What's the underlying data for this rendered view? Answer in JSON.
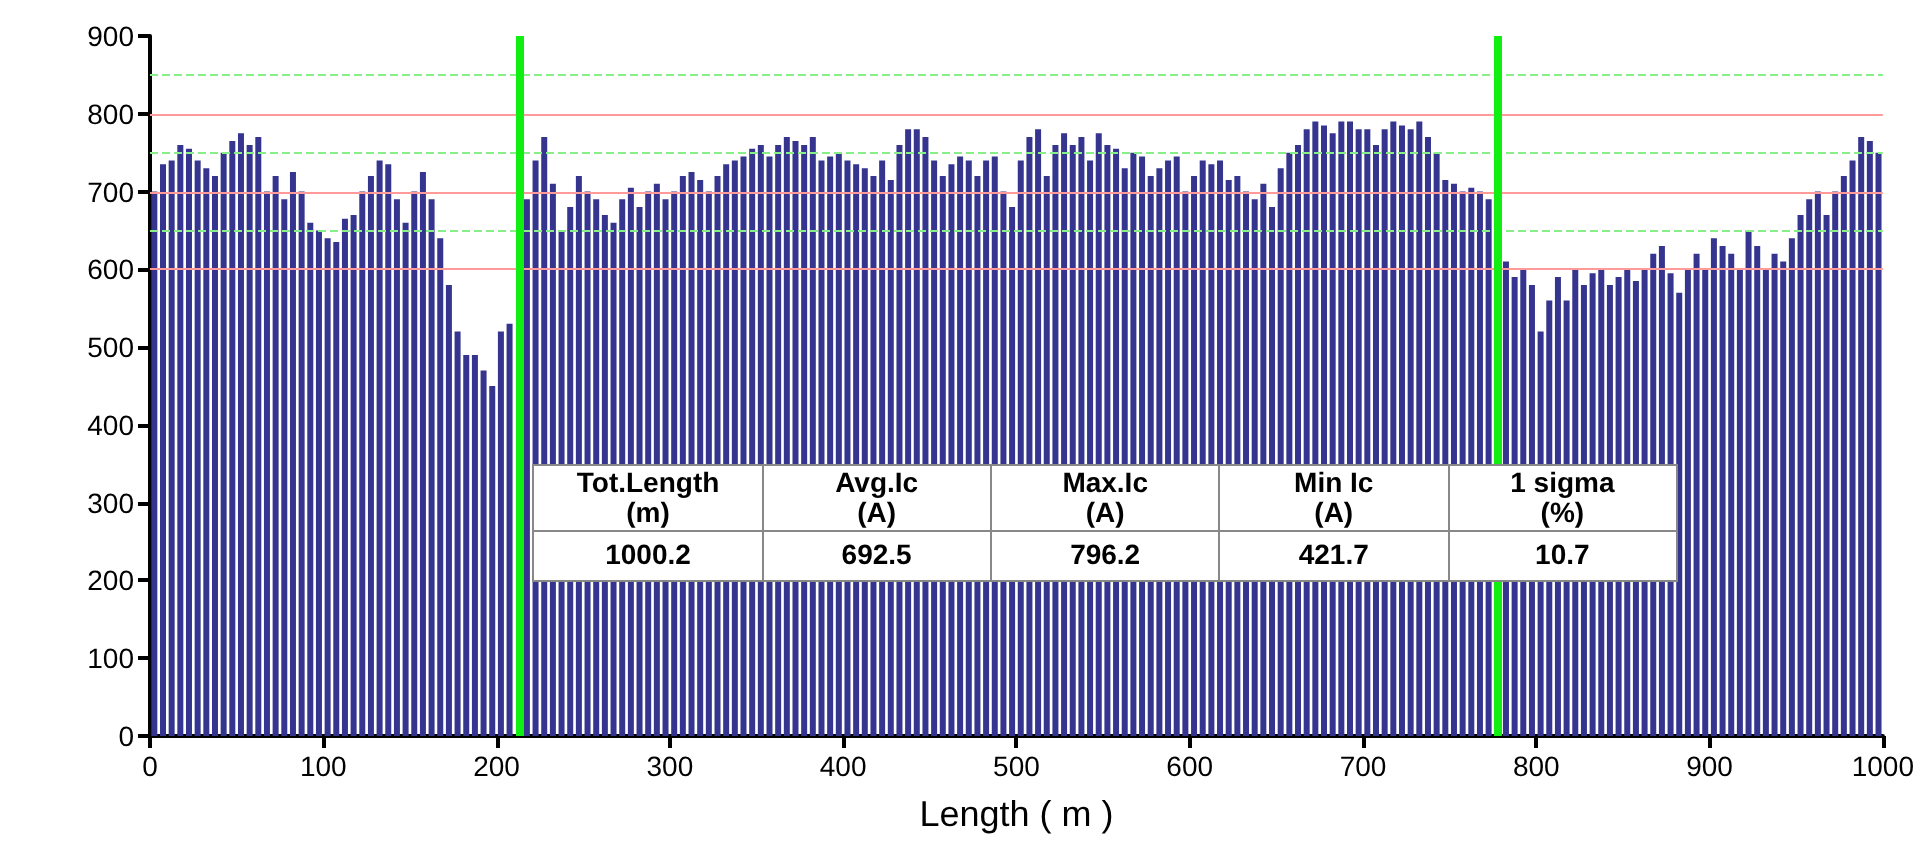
{
  "chart_data": {
    "type": "bar",
    "xlabel": "Length ( m )",
    "x": [
      2.5,
      7.5,
      12.5,
      17.5,
      22.5,
      27.5,
      32.5,
      37.5,
      42.5,
      47.5,
      52.5,
      57.5,
      62.5,
      67.5,
      72.5,
      77.5,
      82.5,
      87.5,
      92.5,
      97.5,
      102.5,
      107.5,
      112.5,
      117.5,
      122.5,
      127.5,
      132.5,
      137.5,
      142.5,
      147.5,
      152.5,
      157.5,
      162.5,
      167.5,
      172.5,
      177.5,
      182.5,
      187.5,
      192.5,
      197.5,
      202.5,
      207.5,
      212.5,
      217.5,
      222.5,
      227.5,
      232.5,
      237.5,
      242.5,
      247.5,
      252.5,
      257.5,
      262.5,
      267.5,
      272.5,
      277.5,
      282.5,
      287.5,
      292.5,
      297.5,
      302.5,
      307.5,
      312.5,
      317.5,
      322.5,
      327.5,
      332.5,
      337.5,
      342.5,
      347.5,
      352.5,
      357.5,
      362.5,
      367.5,
      372.5,
      377.5,
      382.5,
      387.5,
      392.5,
      397.5,
      402.5,
      407.5,
      412.5,
      417.5,
      422.5,
      427.5,
      432.5,
      437.5,
      442.5,
      447.5,
      452.5,
      457.5,
      462.5,
      467.5,
      472.5,
      477.5,
      482.5,
      487.5,
      492.5,
      497.5,
      502.5,
      507.5,
      512.5,
      517.5,
      522.5,
      527.5,
      532.5,
      537.5,
      542.5,
      547.5,
      552.5,
      557.5,
      562.5,
      567.5,
      572.5,
      577.5,
      582.5,
      587.5,
      592.5,
      597.5,
      602.5,
      607.5,
      612.5,
      617.5,
      622.5,
      627.5,
      632.5,
      637.5,
      642.5,
      647.5,
      652.5,
      657.5,
      662.5,
      667.5,
      672.5,
      677.5,
      682.5,
      687.5,
      692.5,
      697.5,
      702.5,
      707.5,
      712.5,
      717.5,
      722.5,
      727.5,
      732.5,
      737.5,
      742.5,
      747.5,
      752.5,
      757.5,
      762.5,
      767.5,
      772.5,
      777.5,
      782.5,
      787.5,
      792.5,
      797.5,
      802.5,
      807.5,
      812.5,
      817.5,
      822.5,
      827.5,
      832.5,
      837.5,
      842.5,
      847.5,
      852.5,
      857.5,
      862.5,
      867.5,
      872.5,
      877.5,
      882.5,
      887.5,
      892.5,
      897.5,
      902.5,
      907.5,
      912.5,
      917.5,
      922.5,
      927.5,
      932.5,
      937.5,
      942.5,
      947.5,
      952.5,
      957.5,
      962.5,
      967.5,
      972.5,
      977.5,
      982.5,
      987.5,
      992.5,
      997.5
    ],
    "values": [
      700,
      735,
      740,
      760,
      755,
      740,
      730,
      720,
      750,
      765,
      775,
      760,
      770,
      700,
      720,
      690,
      725,
      700,
      660,
      650,
      640,
      635,
      665,
      670,
      700,
      720,
      740,
      735,
      690,
      660,
      700,
      725,
      690,
      640,
      580,
      520,
      490,
      490,
      470,
      450,
      520,
      530,
      null,
      690,
      740,
      770,
      710,
      650,
      680,
      720,
      700,
      690,
      670,
      660,
      690,
      705,
      680,
      700,
      710,
      690,
      700,
      720,
      725,
      715,
      700,
      720,
      735,
      740,
      745,
      755,
      760,
      745,
      760,
      770,
      765,
      760,
      770,
      740,
      745,
      750,
      740,
      735,
      730,
      720,
      740,
      715,
      760,
      780,
      780,
      770,
      740,
      720,
      735,
      745,
      740,
      720,
      740,
      745,
      700,
      680,
      740,
      770,
      780,
      720,
      760,
      775,
      760,
      770,
      740,
      775,
      760,
      755,
      730,
      750,
      745,
      720,
      730,
      740,
      745,
      700,
      720,
      740,
      735,
      740,
      715,
      720,
      700,
      690,
      710,
      680,
      730,
      750,
      760,
      780,
      790,
      785,
      775,
      790,
      790,
      780,
      780,
      760,
      780,
      790,
      785,
      780,
      790,
      770,
      750,
      715,
      710,
      700,
      705,
      700,
      690,
      null,
      610,
      590,
      600,
      580,
      520,
      560,
      590,
      560,
      600,
      580,
      595,
      600,
      580,
      590,
      600,
      585,
      600,
      620,
      630,
      595,
      570,
      600,
      620,
      600,
      640,
      630,
      620,
      600,
      650,
      630,
      600,
      620,
      610,
      640,
      670,
      690,
      700,
      670,
      700,
      720,
      740,
      770,
      765,
      750
    ],
    "color": "#35358f",
    "xlim": [
      0,
      1000
    ],
    "xticks": [
      0,
      100,
      200,
      300,
      400,
      500,
      600,
      700,
      800,
      900,
      1000
    ],
    "ylim": [
      0,
      900
    ],
    "yticks": [
      0,
      100,
      200,
      300,
      400,
      500,
      600,
      700,
      800,
      900
    ],
    "ref_lines": [
      {
        "axis": "y",
        "value": 600,
        "color": "#ff9a9a",
        "line_style": "solid"
      },
      {
        "axis": "y",
        "value": 700,
        "color": "#ff9a9a",
        "line_style": "solid"
      },
      {
        "axis": "y",
        "value": 800,
        "color": "#ff9a9a",
        "line_style": "solid"
      },
      {
        "axis": "y",
        "value": 650,
        "color": "#88ee88",
        "line_style": "dashed"
      },
      {
        "axis": "y",
        "value": 750,
        "color": "#88ee88",
        "line_style": "dashed"
      },
      {
        "axis": "y",
        "value": 850,
        "color": "#88ee88",
        "line_style": "dashed"
      },
      {
        "axis": "x",
        "value": 213,
        "color": "#11ee11",
        "line_style": "solid"
      },
      {
        "axis": "x",
        "value": 778,
        "color": "#11ee11",
        "line_style": "solid"
      }
    ],
    "annotations": [
      "Tot.Length\n(m)",
      "Avg.Ic\n(A)",
      "Max.Ic\n(A)",
      "Min Ic\n(A)",
      "1 sigma\n(%)",
      "1000.2",
      "692.5",
      "796.2",
      "421.7",
      "10.7"
    ]
  }
}
